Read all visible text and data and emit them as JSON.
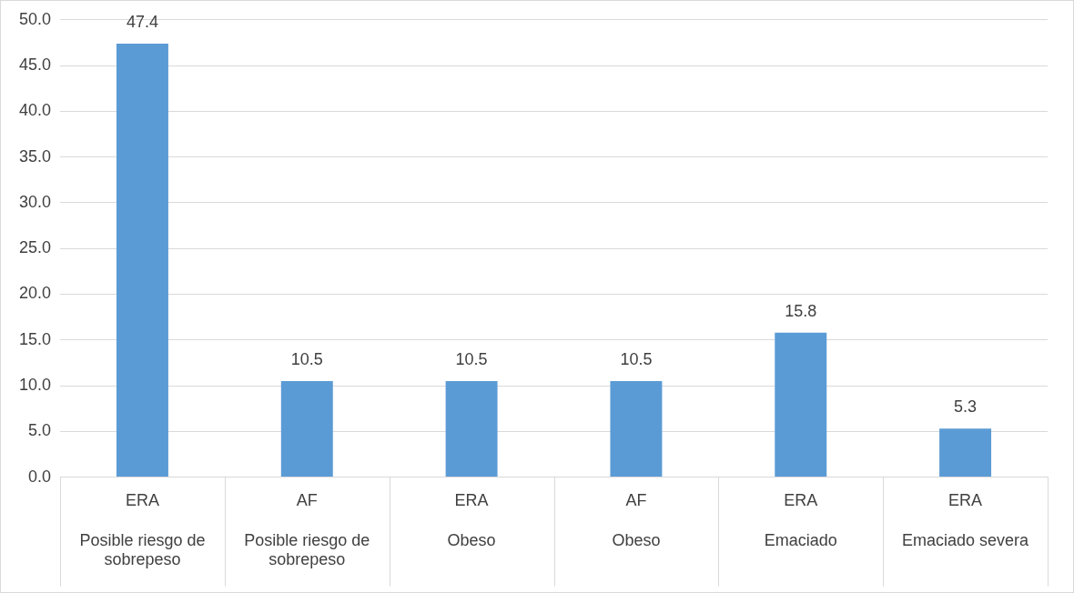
{
  "chart_data": {
    "type": "bar",
    "categories": [
      "ERA\nPosible riesgo de sobrepeso",
      "AF\nPosible riesgo de sobrepeso",
      "ERA\nObeso",
      "AF\nObeso",
      "ERA\nEmaciado",
      "ERA\nEmaciado severa"
    ],
    "values": [
      47.4,
      10.5,
      10.5,
      10.5,
      15.8,
      5.3
    ],
    "color": "#5b9bd5",
    "ylim": [
      0,
      50
    ],
    "yticks": [
      {
        "value": 0,
        "label": "0.0"
      },
      {
        "value": 5,
        "label": "5.0"
      },
      {
        "value": 10,
        "label": "10.0"
      },
      {
        "value": 15,
        "label": "15.0"
      },
      {
        "value": 20,
        "label": "20.0"
      },
      {
        "value": 25,
        "label": "25.0"
      },
      {
        "value": 30,
        "label": "30.0"
      },
      {
        "value": 35,
        "label": "35.0"
      },
      {
        "value": 40,
        "label": "40.0"
      },
      {
        "value": 45,
        "label": "45.0"
      },
      {
        "value": 50,
        "label": "50.0"
      }
    ],
    "grid": "y",
    "legend": false,
    "data_labels": true
  }
}
